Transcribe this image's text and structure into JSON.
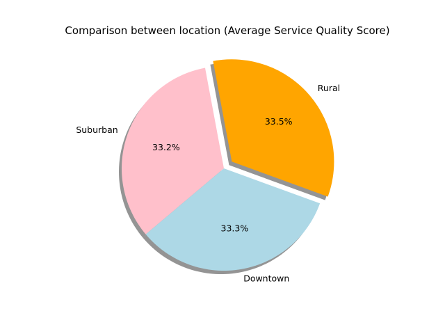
{
  "chart_data": {
    "type": "pie",
    "title": "Comparison between location (Average Service Quality Score)",
    "categories": [
      "Rural",
      "Suburban",
      "Downtown"
    ],
    "values": [
      33.5,
      33.2,
      33.3
    ],
    "percent_labels": [
      "33.5%",
      "33.2%",
      "33.3%"
    ],
    "colors": [
      "#ffa500",
      "#ffc0cb",
      "#add8e6"
    ],
    "exploded": [
      true,
      false,
      false
    ],
    "shadow": true,
    "start_angle_deg": -20
  }
}
